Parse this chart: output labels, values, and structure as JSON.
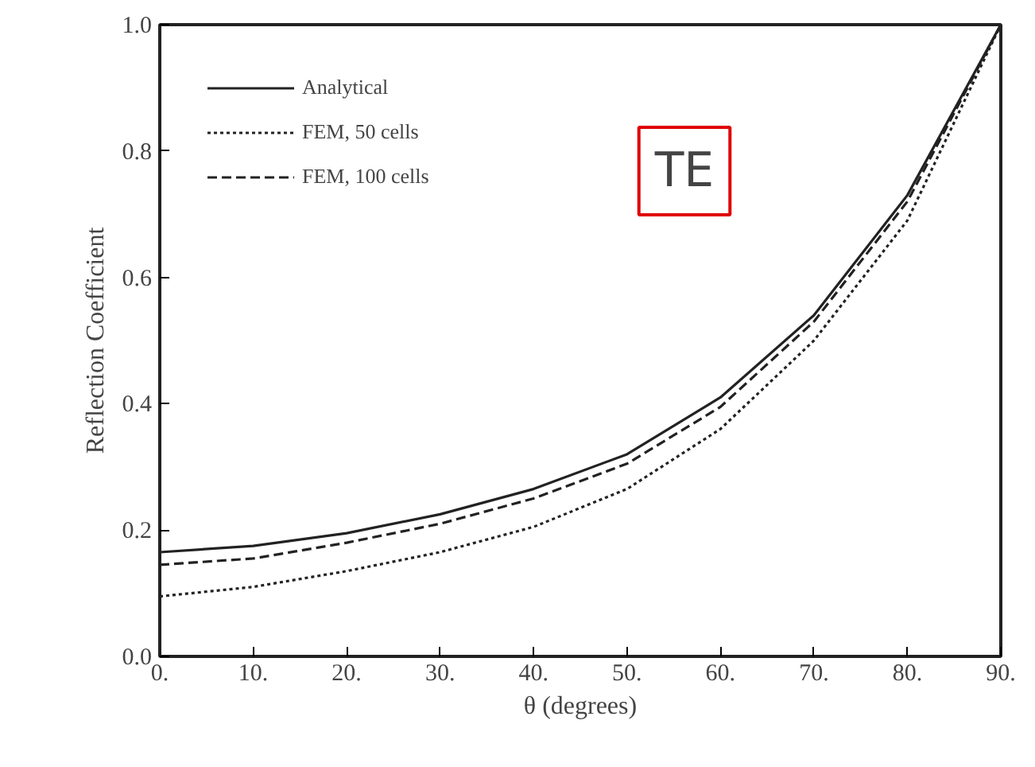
{
  "chart_data": {
    "type": "line",
    "xlabel": "θ (degrees)",
    "ylabel": "Reflection Coefficient",
    "x": [
      0,
      10,
      20,
      30,
      40,
      50,
      60,
      70,
      80,
      90
    ],
    "series": [
      {
        "name": "Analytical",
        "color": "#222222",
        "line_style": "solid",
        "values": [
          0.165,
          0.175,
          0.195,
          0.225,
          0.265,
          0.32,
          0.41,
          0.54,
          0.73,
          1.0
        ]
      },
      {
        "name": "FEM, 50 cells",
        "color": "#222222",
        "line_style": "dotted",
        "values": [
          0.095,
          0.11,
          0.135,
          0.165,
          0.205,
          0.265,
          0.36,
          0.5,
          0.69,
          1.0
        ]
      },
      {
        "name": "FEM, 100 cells",
        "color": "#222222",
        "line_style": "dashed",
        "values": [
          0.145,
          0.155,
          0.18,
          0.21,
          0.25,
          0.305,
          0.395,
          0.53,
          0.72,
          1.0
        ]
      }
    ],
    "xlim": [
      0,
      90
    ],
    "ylim": [
      0,
      1.0
    ],
    "xticks": [
      {
        "value": 0,
        "label": "0."
      },
      {
        "value": 10,
        "label": "10."
      },
      {
        "value": 20,
        "label": "20."
      },
      {
        "value": 30,
        "label": "30."
      },
      {
        "value": 40,
        "label": "40."
      },
      {
        "value": 50,
        "label": "50."
      },
      {
        "value": 60,
        "label": "60."
      },
      {
        "value": 70,
        "label": "70."
      },
      {
        "value": 80,
        "label": "80."
      },
      {
        "value": 90,
        "label": "90."
      }
    ],
    "yticks": [
      {
        "value": 0,
        "label": "0.0"
      },
      {
        "value": 0.2,
        "label": "0.2"
      },
      {
        "value": 0.4,
        "label": "0.4"
      },
      {
        "value": 0.6,
        "label": "0.6"
      },
      {
        "value": 0.8,
        "label": "0.8"
      },
      {
        "value": 1.0,
        "label": "1.0"
      }
    ],
    "annotations": [
      "TE"
    ],
    "grid": false,
    "legend": "top left",
    "marker": "none"
  }
}
